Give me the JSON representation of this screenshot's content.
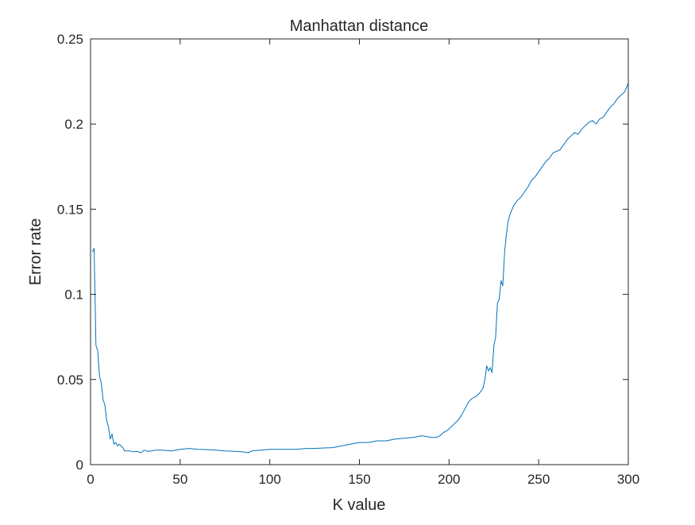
{
  "chart_data": {
    "type": "line",
    "title": "Manhattan distance",
    "xlabel": "K value",
    "ylabel": "Error rate",
    "xlim": [
      0,
      300
    ],
    "ylim": [
      0,
      0.25
    ],
    "xticks": [
      "0",
      "50",
      "100",
      "150",
      "200",
      "250",
      "300"
    ],
    "yticks": [
      "0",
      "0.05",
      "0.1",
      "0.15",
      "0.2",
      "0.25"
    ],
    "grid": false,
    "legend": "none",
    "line_color": "#0072BD",
    "series": [
      {
        "x": [
          1,
          2,
          3,
          4,
          5,
          6,
          7,
          8,
          9,
          10,
          11,
          12,
          13,
          14,
          15,
          16,
          17,
          18,
          19,
          20,
          22,
          24,
          26,
          28,
          30,
          32,
          34,
          36,
          38,
          40,
          45,
          50,
          55,
          60,
          65,
          70,
          75,
          80,
          85,
          88,
          90,
          95,
          100,
          105,
          110,
          115,
          120,
          125,
          130,
          135,
          140,
          145,
          150,
          155,
          160,
          165,
          170,
          175,
          180,
          185,
          190,
          193,
          195,
          197,
          199,
          201,
          203,
          205,
          207,
          209,
          211,
          213,
          215,
          217,
          219,
          220,
          221,
          222,
          223,
          224,
          225,
          226,
          227,
          228,
          229,
          230,
          231,
          232,
          233,
          234,
          236,
          238,
          240,
          242,
          244,
          246,
          248,
          250,
          252,
          254,
          256,
          258,
          260,
          262,
          264,
          266,
          268,
          270,
          272,
          274,
          276,
          278,
          280,
          282,
          284,
          286,
          288,
          290,
          292,
          294,
          296,
          298,
          300
        ],
        "y": [
          0.125,
          0.127,
          0.07,
          0.067,
          0.052,
          0.048,
          0.038,
          0.035,
          0.026,
          0.022,
          0.015,
          0.018,
          0.012,
          0.013,
          0.011,
          0.012,
          0.011,
          0.01,
          0.008,
          0.008,
          0.008,
          0.0075,
          0.0078,
          0.007,
          0.0085,
          0.0078,
          0.008,
          0.0085,
          0.0085,
          0.0085,
          0.008,
          0.009,
          0.0095,
          0.009,
          0.0088,
          0.0085,
          0.008,
          0.0078,
          0.0075,
          0.007,
          0.008,
          0.0085,
          0.009,
          0.009,
          0.009,
          0.009,
          0.0095,
          0.0095,
          0.0098,
          0.01,
          0.011,
          0.012,
          0.013,
          0.013,
          0.014,
          0.014,
          0.015,
          0.0155,
          0.016,
          0.017,
          0.016,
          0.016,
          0.017,
          0.019,
          0.02,
          0.022,
          0.024,
          0.026,
          0.029,
          0.033,
          0.037,
          0.039,
          0.04,
          0.042,
          0.045,
          0.05,
          0.058,
          0.055,
          0.057,
          0.054,
          0.07,
          0.075,
          0.095,
          0.097,
          0.108,
          0.105,
          0.125,
          0.135,
          0.143,
          0.147,
          0.152,
          0.155,
          0.157,
          0.16,
          0.163,
          0.167,
          0.169,
          0.172,
          0.175,
          0.178,
          0.18,
          0.183,
          0.184,
          0.185,
          0.188,
          0.191,
          0.193,
          0.195,
          0.194,
          0.197,
          0.199,
          0.201,
          0.202,
          0.2,
          0.203,
          0.204,
          0.207,
          0.21,
          0.212,
          0.215,
          0.217,
          0.219,
          0.224
        ]
      }
    ]
  }
}
